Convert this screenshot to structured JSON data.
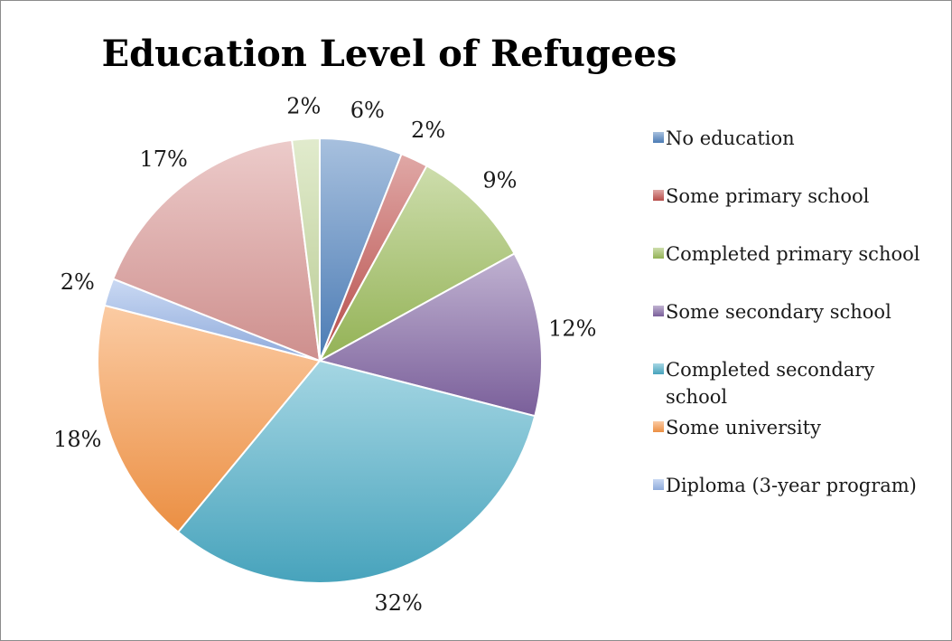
{
  "chart_data": {
    "type": "pie",
    "title": "Education Level of Refugees",
    "legend_position": "right",
    "slices": [
      {
        "label": "No education",
        "value": 6,
        "display": "6%",
        "color": "#4f81bd"
      },
      {
        "label": "Some primary school",
        "value": 2,
        "display": "2%",
        "color": "#c0504d"
      },
      {
        "label": "Completed primary school",
        "value": 9,
        "display": "9%",
        "color": "#9bbb59"
      },
      {
        "label": "Some secondary school",
        "value": 12,
        "display": "12%",
        "color": "#8064a2"
      },
      {
        "label": "Completed secondary school",
        "legend_lines": [
          "Completed secondary",
          "school"
        ],
        "value": 32,
        "display": "32%",
        "color": "#4bacc6"
      },
      {
        "label": "Some university",
        "value": 18,
        "display": "18%",
        "color": "#f79646"
      },
      {
        "label": "Diploma (3-year program)",
        "value": 2,
        "display": "2%",
        "color": "#95b3e6"
      },
      {
        "label": "",
        "value": 17,
        "display": "17%",
        "color": "#d99694",
        "in_legend": false
      },
      {
        "label": "",
        "value": 2,
        "display": "2%",
        "color": "#c3d69b",
        "in_legend": false
      }
    ]
  }
}
